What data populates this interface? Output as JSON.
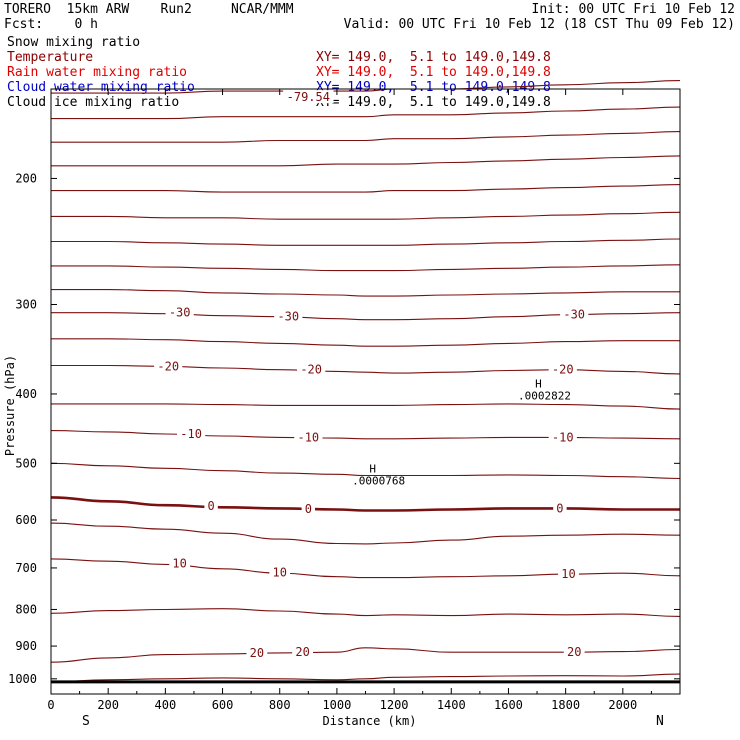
{
  "header": {
    "model": "TORERO  15km ARW    Run2     NCAR/MMM",
    "init": "Init: 00 UTC Fri 10 Feb 12",
    "fcst": "Fcst:    0 h",
    "valid": "Valid: 00 UTC Fri 10 Feb 12 (18 CST Thu 09 Feb 12)"
  },
  "legend": [
    {
      "field": "Snow mixing ratio",
      "field_color": "#000000",
      "coords": "",
      "coords_color": "#000000"
    },
    {
      "field": "Temperature",
      "field_color": "#8b0000",
      "coords": "XY= 149.0,  5.1 to 149.0,149.8",
      "coords_color": "#8b0000"
    },
    {
      "field": "Rain water mixing ratio",
      "field_color": "#e00000",
      "coords": "XY= 149.0,  5.1 to 149.0,149.8",
      "coords_color": "#e00000"
    },
    {
      "field": "Cloud water mixing ratio",
      "field_color": "#0000c8",
      "coords": "XY= 149.0,  5.1 to 149.0,149.8",
      "coords_color": "#0000c8"
    },
    {
      "field": "Cloud ice mixing ratio",
      "field_color": "#000000",
      "coords": "XY= 149.0,  5.1 to 149.0,149.8",
      "coords_color": "#000000"
    }
  ],
  "colors": {
    "temperature": "#7a1010",
    "axis": "#000000"
  },
  "chart_data": {
    "type": "line",
    "subtype": "vertical cross-section contour plot",
    "xlabel": "Distance (km)",
    "ylabel": "Pressure (hPa)",
    "xlim": [
      0,
      2200
    ],
    "ylim_pressure": [
      150,
      1050
    ],
    "y_scale": "log",
    "x_ticks": [
      "0",
      "200",
      "400",
      "600",
      "800",
      "1000",
      "1200",
      "1400",
      "1600",
      "1800",
      "2000"
    ],
    "y_ticks": [
      "200",
      "300",
      "400",
      "500",
      "600",
      "700",
      "800",
      "900",
      "1000"
    ],
    "endpoint_labels": {
      "left": "S",
      "right": "N"
    },
    "grid": false,
    "contour_interval_C": 5,
    "x": [
      0,
      200,
      400,
      600,
      800,
      1000,
      1100,
      1200,
      1400,
      1600,
      1800,
      2000,
      2200
    ],
    "series": [
      {
        "label": "-75",
        "values": [
          152,
          152,
          152,
          151,
          151,
          151,
          151,
          150,
          150,
          149,
          148,
          147,
          146
        ]
      },
      {
        "label": "-70",
        "values": [
          165,
          165,
          165,
          164,
          164,
          164,
          164,
          163,
          163,
          162,
          161,
          160,
          159
        ]
      },
      {
        "label": "-65",
        "values": [
          178,
          178,
          178,
          178,
          177,
          177,
          177,
          176,
          176,
          175,
          174,
          173,
          172
        ]
      },
      {
        "label": "-60",
        "values": [
          192,
          192,
          192,
          192,
          192,
          191,
          191,
          191,
          190,
          189,
          188,
          187,
          186
        ]
      },
      {
        "label": "-55",
        "values": [
          208,
          208,
          208,
          209,
          209,
          209,
          209,
          208,
          208,
          207,
          206,
          205,
          204
        ]
      },
      {
        "label": "-50",
        "values": [
          226,
          226,
          227,
          227,
          228,
          228,
          228,
          228,
          227,
          226,
          225,
          224,
          223
        ]
      },
      {
        "label": "-45",
        "values": [
          245,
          245,
          246,
          247,
          248,
          248,
          248,
          248,
          247,
          246,
          245,
          244,
          243
        ]
      },
      {
        "label": "-40",
        "values": [
          265,
          265,
          266,
          267,
          268,
          269,
          269,
          269,
          268,
          267,
          266,
          265,
          264
        ]
      },
      {
        "label": "-35",
        "values": [
          286,
          286,
          287,
          289,
          290,
          291,
          292,
          292,
          291,
          290,
          289,
          288,
          288
        ]
      },
      {
        "label": "-30",
        "values": [
          308,
          308,
          309,
          311,
          312,
          314,
          315,
          315,
          314,
          312,
          310,
          309,
          308
        ]
      },
      {
        "label": "-25",
        "values": [
          335,
          335,
          336,
          338,
          340,
          342,
          343,
          343,
          342,
          340,
          338,
          337,
          337
        ]
      },
      {
        "label": "-20",
        "values": [
          365,
          365,
          366,
          368,
          370,
          372,
          373,
          374,
          373,
          371,
          370,
          372,
          375
        ]
      },
      {
        "label": "-15",
        "values": [
          413,
          413,
          413,
          414,
          415,
          415,
          415,
          415,
          414,
          413,
          414,
          416,
          420
        ]
      },
      {
        "label": "-10",
        "values": [
          450,
          452,
          455,
          458,
          460,
          461,
          462,
          462,
          461,
          460,
          460,
          461,
          462
        ]
      },
      {
        "label": "-5",
        "values": [
          500,
          504,
          508,
          512,
          516,
          518,
          520,
          520,
          520,
          519,
          520,
          522,
          525
        ]
      },
      {
        "label": "0",
        "values": [
          558,
          565,
          572,
          576,
          578,
          580,
          582,
          582,
          580,
          578,
          578,
          580,
          580
        ]
      },
      {
        "label": "5",
        "values": [
          606,
          612,
          618,
          626,
          638,
          647,
          648,
          646,
          640,
          632,
          630,
          628,
          630
        ]
      },
      {
        "label": "10",
        "values": [
          680,
          685,
          692,
          702,
          712,
          720,
          722,
          722,
          720,
          718,
          714,
          712,
          718
        ]
      },
      {
        "label": "15",
        "values": [
          810,
          803,
          800,
          798,
          804,
          812,
          816,
          814,
          816,
          812,
          814,
          812,
          818
        ]
      },
      {
        "label": "20",
        "values": [
          948,
          935,
          925,
          923,
          920,
          918,
          905,
          908,
          918,
          918,
          918,
          916,
          910
        ]
      },
      {
        "label": "25",
        "values": [
          1010,
          1003,
          1000,
          997,
          1000,
          1003,
          1000,
          995,
          993,
          991,
          990,
          991,
          985
        ]
      }
    ],
    "line_labels": [
      {
        "text": "-79.54",
        "x": 900,
        "p": 154
      },
      {
        "text": "-30",
        "x": 450,
        "p": 308
      },
      {
        "text": "-30",
        "x": 830,
        "p": 312
      },
      {
        "text": "-30",
        "x": 1830,
        "p": 310
      },
      {
        "text": "-20",
        "x": 410,
        "p": 366
      },
      {
        "text": "-20",
        "x": 910,
        "p": 370
      },
      {
        "text": "-20",
        "x": 1790,
        "p": 370
      },
      {
        "text": "-10",
        "x": 490,
        "p": 455
      },
      {
        "text": "-10",
        "x": 900,
        "p": 460
      },
      {
        "text": "-10",
        "x": 1790,
        "p": 460
      },
      {
        "text": "0",
        "x": 560,
        "p": 574
      },
      {
        "text": "0",
        "x": 900,
        "p": 579
      },
      {
        "text": "0",
        "x": 1780,
        "p": 578
      },
      {
        "text": "10",
        "x": 450,
        "p": 690
      },
      {
        "text": "10",
        "x": 800,
        "p": 710
      },
      {
        "text": "10",
        "x": 1810,
        "p": 714
      },
      {
        "text": "20",
        "x": 720,
        "p": 921
      },
      {
        "text": "20",
        "x": 880,
        "p": 918
      },
      {
        "text": "20",
        "x": 1830,
        "p": 918
      }
    ],
    "extrema": [
      {
        "mark": "H",
        "value": ".0002822",
        "x": 1740,
        "p": 403
      },
      {
        "mark": "H",
        "value": ".0000768",
        "x": 1160,
        "p": 530
      }
    ],
    "terrain_pressure": 1010
  }
}
